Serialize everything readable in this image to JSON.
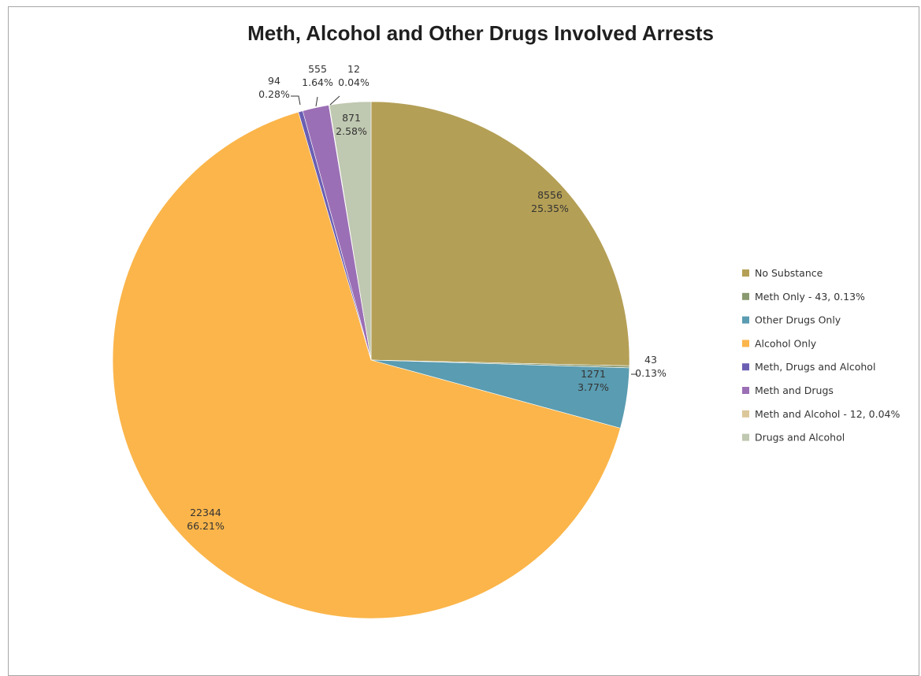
{
  "chart_data": {
    "type": "pie",
    "title": "Meth, Alcohol and Other Drugs Involved Arrests",
    "legend_position": "right",
    "start_angle_deg": 0,
    "direction": "clockwise",
    "slices": [
      {
        "name": "No Substance",
        "value": 8556,
        "percent": "25.35%",
        "color": "#b49f56"
      },
      {
        "name": "Meth Only - 43, 0.13%",
        "value": 43,
        "percent": "0.13%",
        "color": "#8a9a70"
      },
      {
        "name": "Other Drugs Only",
        "value": 1271,
        "percent": "3.77%",
        "color": "#5a9cb1"
      },
      {
        "name": "Alcohol Only",
        "value": 22344,
        "percent": "66.21%",
        "color": "#fbb54a"
      },
      {
        "name": "Meth, Drugs and Alcohol",
        "value": 94,
        "percent": "0.28%",
        "color": "#6b5fb3"
      },
      {
        "name": "Meth and Drugs",
        "value": 555,
        "percent": "1.64%",
        "color": "#9b6fb5"
      },
      {
        "name": "Meth and Alcohol - 12, 0.04%",
        "value": 12,
        "percent": "0.04%",
        "color": "#dbc79a"
      },
      {
        "name": "Drugs and Alcohol",
        "value": 871,
        "percent": "2.58%",
        "color": "#bfc8b0"
      }
    ]
  }
}
